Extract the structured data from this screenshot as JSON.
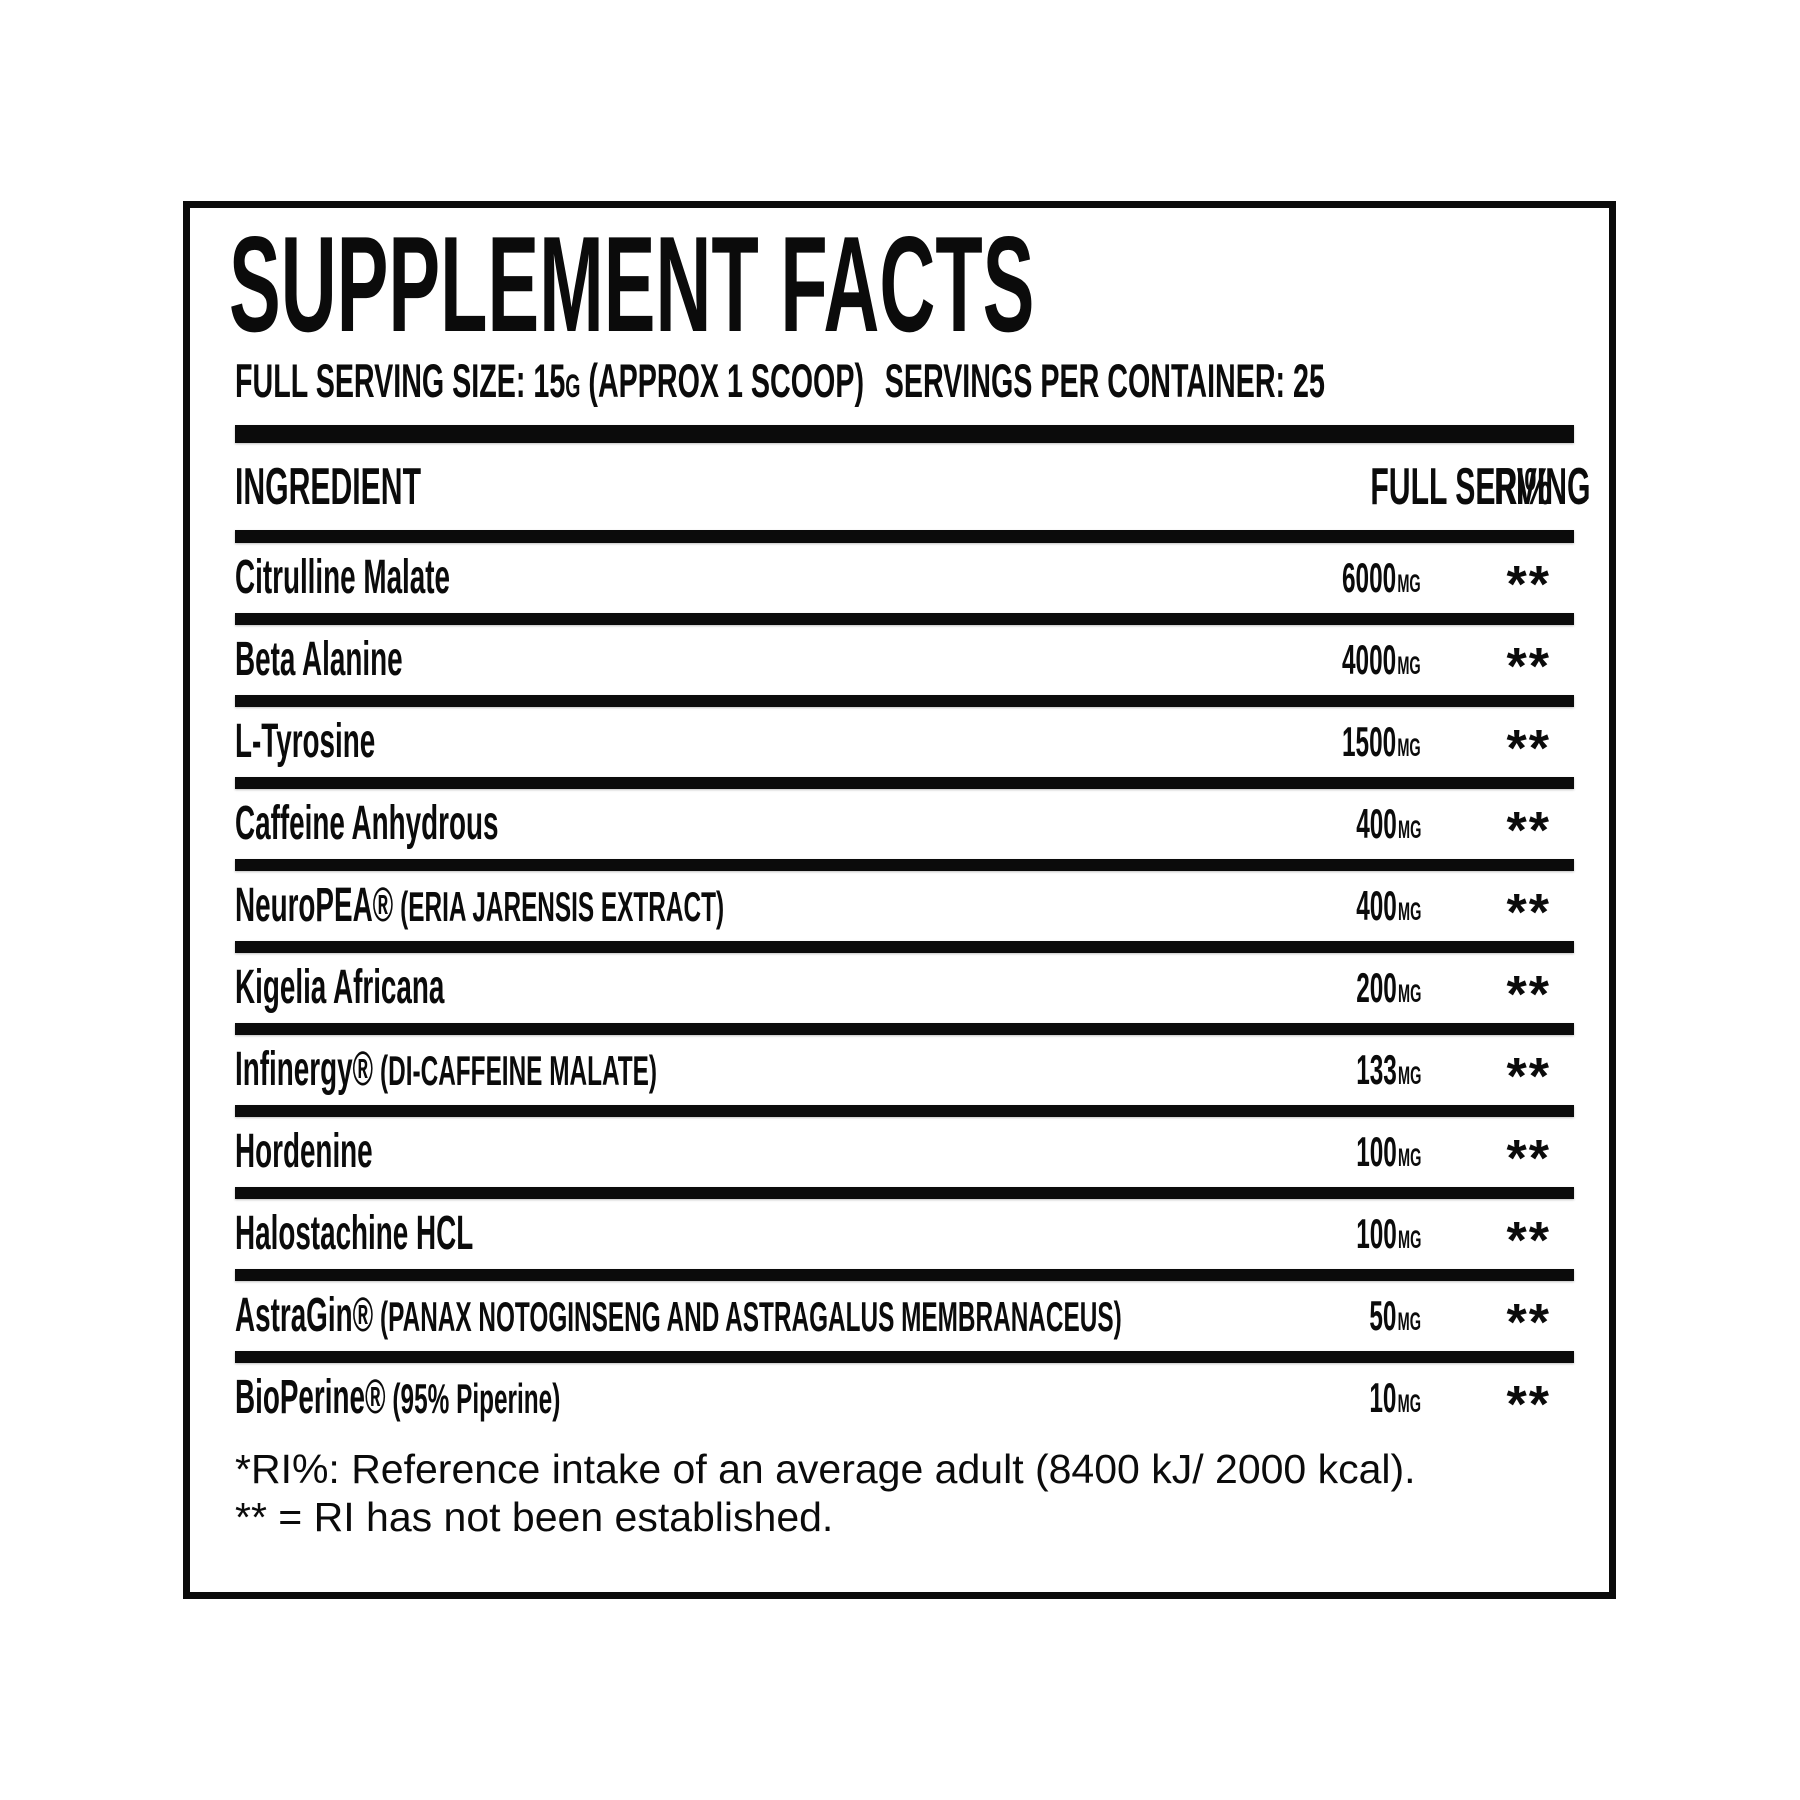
{
  "theme": {
    "ink": "#0b0b0b",
    "background": "#ffffff"
  },
  "panel": {
    "title": "SUPPLEMENT FACTS",
    "serving": {
      "size_label": "FULL SERVING SIZE:",
      "size_value": "15",
      "size_unit": "G",
      "size_note": "(APPROX 1 SCOOP)",
      "servings_label": "SERVINGS PER CONTAINER:",
      "servings_value": "25"
    },
    "table": {
      "columns": {
        "ingredient": "INGREDIENT",
        "amount": "FULL SERVING",
        "ri": "RI%"
      },
      "rows": [
        {
          "name": "Citrulline Malate",
          "detail": "",
          "amount": "6000",
          "unit": "MG",
          "ri": "**"
        },
        {
          "name": "Beta Alanine",
          "detail": "",
          "amount": "4000",
          "unit": "MG",
          "ri": "**"
        },
        {
          "name": "L-Tyrosine",
          "detail": "",
          "amount": "1500",
          "unit": "MG",
          "ri": "**"
        },
        {
          "name": "Caffeine Anhydrous",
          "detail": "",
          "amount": "400",
          "unit": "MG",
          "ri": "**"
        },
        {
          "name": "NeuroPEA®",
          "detail": "(ERIA JARENSIS EXTRACT)",
          "amount": "400",
          "unit": "MG",
          "ri": "**"
        },
        {
          "name": "Kigelia Africana",
          "detail": "",
          "amount": "200",
          "unit": "MG",
          "ri": "**"
        },
        {
          "name": "Infinergy®",
          "detail": "(DI-CAFFEINE MALATE)",
          "amount": "133",
          "unit": "MG",
          "ri": "**"
        },
        {
          "name": "Hordenine",
          "detail": "",
          "amount": "100",
          "unit": "MG",
          "ri": "**"
        },
        {
          "name": "Halostachine HCL",
          "detail": "",
          "amount": "100",
          "unit": "MG",
          "ri": "**"
        },
        {
          "name": "AstraGin®",
          "detail": "(PANAX NOTOGINSENG AND ASTRAGALUS MEMBRANACEUS)",
          "amount": "50",
          "unit": "MG",
          "ri": "**"
        },
        {
          "name": "BioPerine®",
          "detail": "(95% Piperine)",
          "amount": "10",
          "unit": "MG",
          "ri": "**"
        }
      ]
    },
    "footnotes": [
      "*RI%: Reference intake of an average adult (8400 kJ/ 2000 kcal).",
      "** = RI has not been established."
    ]
  }
}
